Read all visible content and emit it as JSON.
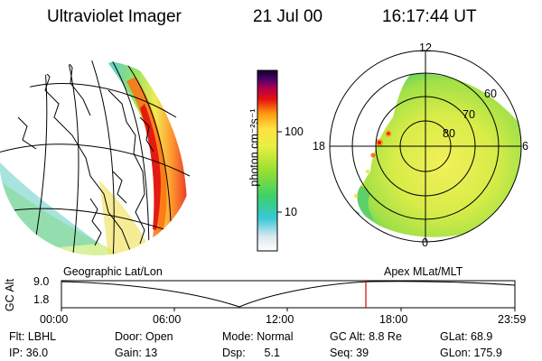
{
  "header": {
    "title": "Ultraviolet Imager",
    "date": "21 Jul 00",
    "time": "16:17:44 UT"
  },
  "colorbar": {
    "label": "photon cm⁻²s⁻¹",
    "ticks": [
      "100",
      "10"
    ]
  },
  "polar_plot": {
    "mlt_labels": [
      "12",
      "18",
      "6",
      "0"
    ],
    "lat_labels": [
      "60",
      "70",
      "80"
    ]
  },
  "panels": {
    "left_caption": "Geographic Lat/Lon",
    "right_caption": "Apex MLat/MLT"
  },
  "orbit_plot": {
    "ylabel": "GC Alt",
    "y_ticks": [
      "9.0",
      "1.8"
    ],
    "x_ticks": [
      "00:00",
      "06:00",
      "12:00",
      "18:00",
      "23:59"
    ],
    "marker_color": "#dd0000"
  },
  "info": {
    "filter": "Flt: LBHL",
    "door": "Door: Open",
    "mode": "Mode: Normal",
    "gc_alt": "GC Alt: 8.8 Re",
    "glat": "GLat:  68.9",
    "ip": "IP: 36.0",
    "gain": "Gain: 13",
    "dsp": "Dsp:      5.1",
    "seq": "Seq: 39",
    "glon": "GLon: 175.9"
  }
}
